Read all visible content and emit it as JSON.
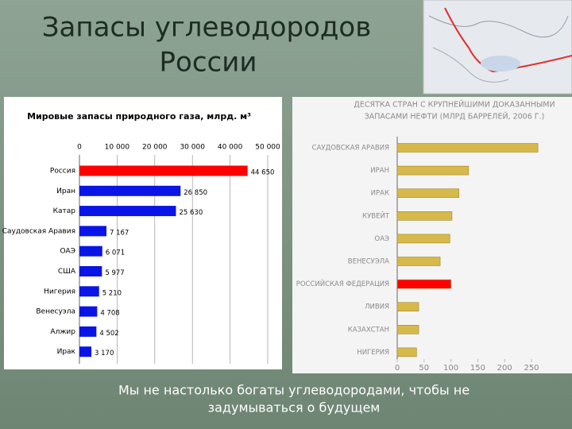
{
  "slide": {
    "title_lines": [
      "Запасы углеводородов",
      "России"
    ],
    "caption_lines": [
      "Мы не настолько богаты углеводородами, чтобы не",
      "задумываться о будущем"
    ]
  },
  "chart_data": [
    {
      "type": "hbar",
      "title": "Мировые запасы природного газа, млрд. м³",
      "categories": [
        "Россия",
        "Иран",
        "Катар",
        "Саудовская Аравия",
        "ОАЭ",
        "США",
        "Нигерия",
        "Венесуэла",
        "Алжир",
        "Ирак"
      ],
      "values": [
        44650,
        26850,
        25630,
        7167,
        6071,
        5977,
        5210,
        4708,
        4502,
        3170
      ],
      "value_labels": [
        "44 650",
        "26 850",
        "25 630",
        "7 167",
        "6 071",
        "5 977",
        "5 210",
        "4 708",
        "4 502",
        "3 170"
      ],
      "colors": [
        "#ff0000",
        "#0a14e6",
        "#0a14e6",
        "#0a14e6",
        "#0a14e6",
        "#0a14e6",
        "#0a14e6",
        "#0a14e6",
        "#0a14e6",
        "#0a14e6"
      ],
      "xlim": [
        0,
        50000
      ],
      "xticks": [
        0,
        {
          "value": 10000,
          "label": "10 000"
        },
        {
          "value": 20000,
          "label": "20 000"
        },
        {
          "value": 30000,
          "label": "30 000"
        },
        {
          "value": 40000,
          "label": "40 000"
        },
        {
          "value": 50000,
          "label": "50 000"
        }
      ],
      "grid": true
    },
    {
      "type": "hbar",
      "title_lines": [
        "ДЕСЯТКА СТРАН С КРУПНЕЙШИМИ ДОКАЗАННЫМИ",
        "ЗАПАСАМИ НЕФТИ (МЛРД БАРРЕЛЕЙ, 2006 Г.)"
      ],
      "categories": [
        "САУДОВСКАЯ АРАВИЯ",
        "ИРАН",
        "ИРАК",
        "КУВЕЙТ",
        "ОАЭ",
        "ВЕНЕСУЭЛА",
        "РОССИЙСКАЯ ФЕДЕРАЦИЯ",
        "ЛИВИЯ",
        "КАЗАХСТАН",
        "НИГЕРИЯ"
      ],
      "values": [
        262,
        133,
        115,
        102,
        98,
        80,
        100,
        40,
        40,
        36
      ],
      "colors": [
        "#d6b94a",
        "#d6b94a",
        "#d6b94a",
        "#d6b94a",
        "#d6b94a",
        "#d6b94a",
        "#ff0000",
        "#d6b94a",
        "#d6b94a",
        "#d6b94a"
      ],
      "xlim": [
        0,
        250
      ],
      "xticks": [
        0,
        50,
        100,
        150,
        200,
        250
      ],
      "grid": false
    }
  ]
}
